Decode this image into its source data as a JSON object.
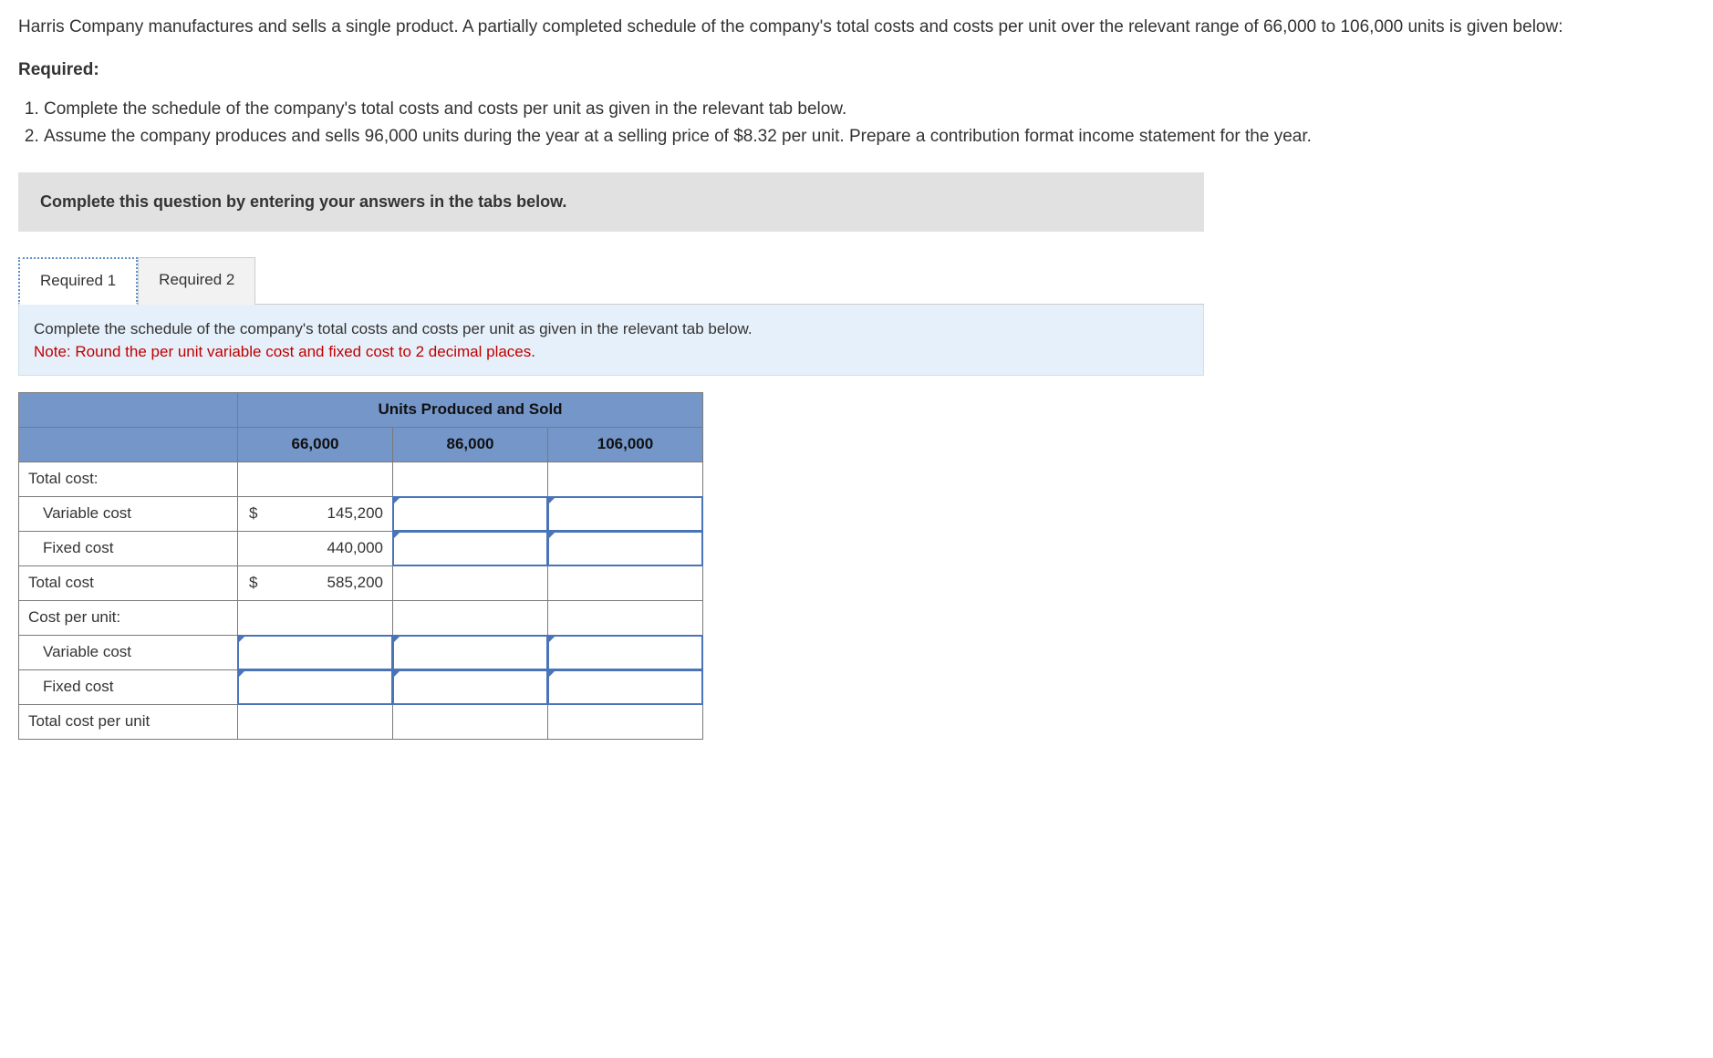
{
  "intro": "Harris Company manufactures and sells a single product. A partially completed schedule of the company's total costs and costs per unit over the relevant range of 66,000 to 106,000 units is given below:",
  "required_heading": "Required:",
  "requirements": [
    "Complete the schedule of the company's total costs and costs per unit as given in the relevant tab below.",
    "Assume the company produces and sells 96,000 units during the year at a selling price of $8.32 per unit. Prepare a contribution format income statement for the year."
  ],
  "greybox": "Complete this question by entering your answers in the tabs below.",
  "tabs": [
    {
      "label": "Required 1",
      "active": true
    },
    {
      "label": "Required 2",
      "active": false
    }
  ],
  "bluebox": {
    "line1": "Complete the schedule of the company's total costs and costs per unit as given in the relevant tab below.",
    "note": "Note: Round the per unit variable cost and fixed cost to 2 decimal places."
  },
  "table": {
    "header_span": "Units Produced and Sold",
    "columns": [
      "66,000",
      "86,000",
      "106,000"
    ],
    "rows": {
      "total_cost_label": "Total cost:",
      "variable_cost_label": "Variable cost",
      "variable_cost_66": {
        "currency": "$",
        "value": "145,200"
      },
      "fixed_cost_label": "Fixed cost",
      "fixed_cost_66": {
        "currency": "",
        "value": "440,000"
      },
      "total_cost_row_label": "Total cost",
      "total_cost_66": {
        "currency": "$",
        "value": "585,200"
      },
      "cost_per_unit_label": "Cost per unit:",
      "variable_cost_pu_label": "Variable cost",
      "fixed_cost_pu_label": "Fixed cost",
      "total_cost_pu_label": "Total cost per unit"
    },
    "colors": {
      "header_bg": "#7496c9",
      "border": "#7a7a7a",
      "input_border": "#4a74b8",
      "bluebox_bg": "#e6f0fa",
      "greybox_bg": "#e1e1e1",
      "note_color": "#c00000"
    }
  }
}
